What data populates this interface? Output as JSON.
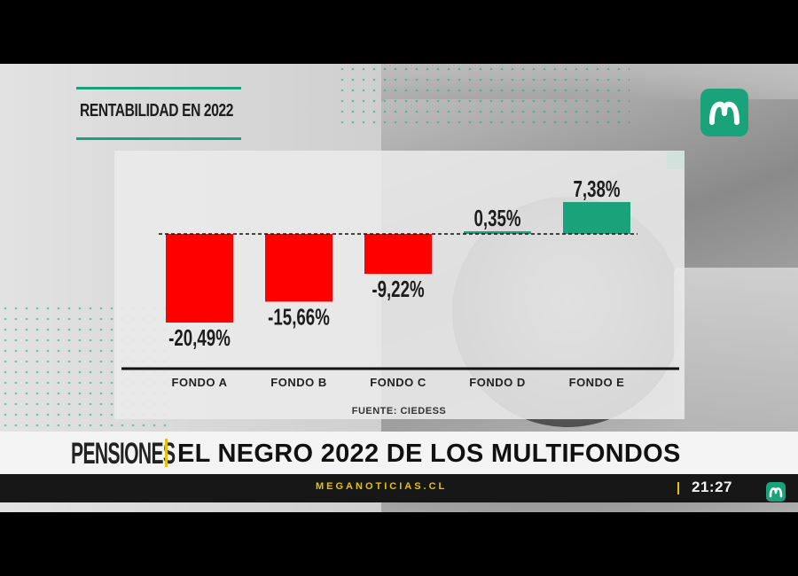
{
  "graphic": {
    "title": "RENTABILIDAD EN 2022",
    "source": "FUENTE: CIEDESS"
  },
  "chart_data": {
    "type": "bar",
    "title": "RENTABILIDAD EN 2022",
    "categories": [
      "FONDO A",
      "FONDO B",
      "FONDO C",
      "FONDO D",
      "FONDO E"
    ],
    "values": [
      -20.49,
      -15.66,
      -9.22,
      0.35,
      7.38
    ],
    "value_labels": [
      "-20,49%",
      "-15,66%",
      "-9,22%",
      "0,35%",
      "7,38%"
    ],
    "ylim": [
      -30,
      10
    ],
    "xlabel": "",
    "ylabel": "",
    "zero_line": "dashed",
    "grid": false,
    "legend": "none",
    "colors": {
      "negative": "#ff0000",
      "positive": "#1aa37a"
    }
  },
  "lower_third": {
    "section": "PENSIONES",
    "headline": "EL NEGRO 2022 DE LOS MULTIFONDOS"
  },
  "ticker": {
    "site": "MEGANOTICIAS.CL",
    "time": "21:27"
  },
  "branding": {
    "logo_icon": "meganoticias-logo-icon",
    "brand_color": "#1aa37a",
    "accent_color": "#e6c300"
  }
}
